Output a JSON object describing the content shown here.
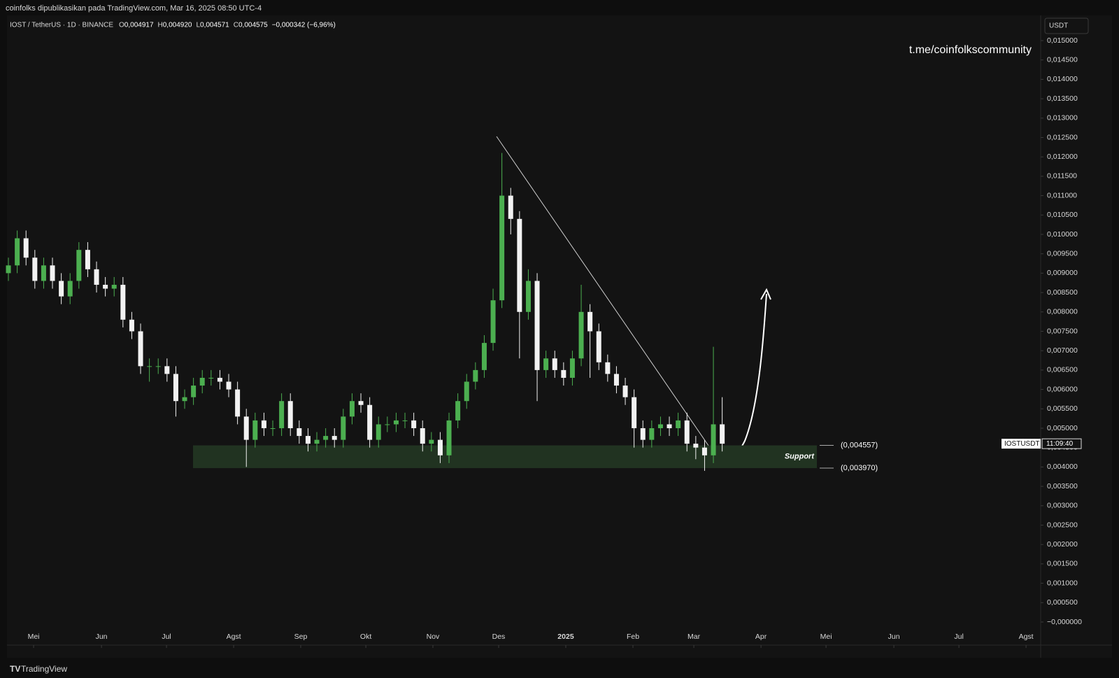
{
  "header": {
    "publisher": "coinfolks dipublikasikan pada TradingView.com, Mar 16, 2025 08:50 UTC-4",
    "symbol": "IOST / TetherUS · 1D · BINANCE",
    "ohlc": [
      {
        "key": "O",
        "value": "0,004917"
      },
      {
        "key": "H",
        "value": "0,004920"
      },
      {
        "key": "L",
        "value": "0,004571"
      },
      {
        "key": "C",
        "value": "0,004575"
      }
    ],
    "change": "−0,000342 (−6,96%)",
    "currency": "USDT",
    "watermark": "t.me/coinfolkscommunity"
  },
  "footer": {
    "brand": "TradingView"
  },
  "price_tag": {
    "symbol": "IOSTUSDT",
    "countdown": "11:09:40"
  },
  "chart_data": {
    "type": "candlestick",
    "up_color": "#4caf50",
    "down_color": "#f2f2f2",
    "grid": false,
    "xlim": [
      -0.16,
      116.9
    ],
    "xticks": [
      {
        "value": 2.86,
        "label": "Mei"
      },
      {
        "value": 10.56,
        "label": "Jun"
      },
      {
        "value": 17.94,
        "label": "Jul"
      },
      {
        "value": 25.56,
        "label": "Agst"
      },
      {
        "value": 33.17,
        "label": "Sep"
      },
      {
        "value": 40.56,
        "label": "Okt"
      },
      {
        "value": 48.17,
        "label": "Nov"
      },
      {
        "value": 55.63,
        "label": "Des"
      },
      {
        "value": 63.25,
        "label": "2025"
      },
      {
        "value": 70.87,
        "label": "Feb"
      },
      {
        "value": 77.78,
        "label": "Mar"
      },
      {
        "value": 85.4,
        "label": "Apr"
      },
      {
        "value": 92.78,
        "label": "Mei"
      },
      {
        "value": 100.48,
        "label": "Jun"
      },
      {
        "value": 107.86,
        "label": "Jul"
      },
      {
        "value": 115.48,
        "label": "Agst"
      }
    ],
    "ylim": [
      -0.00056,
      0.01565
    ],
    "yticks": [
      {
        "value": 0.015,
        "label": "0,015000"
      },
      {
        "value": 0.0145,
        "label": "0,014500"
      },
      {
        "value": 0.014,
        "label": "0,014000"
      },
      {
        "value": 0.0135,
        "label": "0,013500"
      },
      {
        "value": 0.013,
        "label": "0,013000"
      },
      {
        "value": 0.0125,
        "label": "0,012500"
      },
      {
        "value": 0.012,
        "label": "0,012000"
      },
      {
        "value": 0.0115,
        "label": "0,011500"
      },
      {
        "value": 0.011,
        "label": "0,011000"
      },
      {
        "value": 0.0105,
        "label": "0,010500"
      },
      {
        "value": 0.01,
        "label": "0,010000"
      },
      {
        "value": 0.0095,
        "label": "0,009500"
      },
      {
        "value": 0.009,
        "label": "0,009000"
      },
      {
        "value": 0.0085,
        "label": "0,008500"
      },
      {
        "value": 0.008,
        "label": "0,008000"
      },
      {
        "value": 0.0075,
        "label": "0,007500"
      },
      {
        "value": 0.007,
        "label": "0,007000"
      },
      {
        "value": 0.0065,
        "label": "0,006500"
      },
      {
        "value": 0.006,
        "label": "0,006000"
      },
      {
        "value": 0.0055,
        "label": "0,005500"
      },
      {
        "value": 0.005,
        "label": "0,005000"
      },
      {
        "value": 0.0045,
        "label": "0,004500"
      },
      {
        "value": 0.004,
        "label": "0,004000"
      },
      {
        "value": 0.0035,
        "label": "0,003500"
      },
      {
        "value": 0.003,
        "label": "0,003000"
      },
      {
        "value": 0.0025,
        "label": "0,002500"
      },
      {
        "value": 0.002,
        "label": "0,002000"
      },
      {
        "value": 0.0015,
        "label": "0,001500"
      },
      {
        "value": 0.001,
        "label": "0,001000"
      },
      {
        "value": 0.0005,
        "label": "0,000500"
      },
      {
        "value": 0,
        "label": "−0,000000"
      }
    ],
    "open": [
      0.009,
      0.0092,
      0.0099,
      0.0094,
      0.0088,
      0.0092,
      0.0088,
      0.0084,
      0.0088,
      0.0096,
      0.0091,
      0.0087,
      0.0086,
      0.0087,
      0.0078,
      0.0075,
      0.0066,
      0.0066,
      0.0066,
      0.0064,
      0.0057,
      0.0058,
      0.0061,
      0.0063,
      0.0063,
      0.0062,
      0.006,
      0.0053,
      0.0047,
      0.0052,
      0.005,
      0.005,
      0.0057,
      0.005,
      0.0048,
      0.0046,
      0.0047,
      0.0048,
      0.0047,
      0.0053,
      0.0057,
      0.0056,
      0.0047,
      0.0051,
      0.0051,
      0.0052,
      0.0052,
      0.005,
      0.0046,
      0.0047,
      0.0043,
      0.0052,
      0.0057,
      0.0062,
      0.0065,
      0.0072,
      0.0083,
      0.011,
      0.0104,
      0.008,
      0.0088,
      0.0065,
      0.0068,
      0.0065,
      0.0063,
      0.0068,
      0.008,
      0.0075,
      0.0067,
      0.0064,
      0.0061,
      0.0058,
      0.005,
      0.0047,
      0.005,
      0.0051,
      0.005,
      0.0052,
      0.0046,
      0.0045,
      0.0043,
      0.0051
    ],
    "high": [
      0.0094,
      0.0101,
      0.0101,
      0.0096,
      0.0094,
      0.0094,
      0.009,
      0.009,
      0.0098,
      0.0098,
      0.0093,
      0.0089,
      0.0089,
      0.0089,
      0.008,
      0.0077,
      0.0068,
      0.0068,
      0.0068,
      0.0066,
      0.006,
      0.0063,
      0.0065,
      0.0065,
      0.0065,
      0.0064,
      0.0062,
      0.0055,
      0.0054,
      0.0054,
      0.0052,
      0.0059,
      0.0059,
      0.0052,
      0.005,
      0.0049,
      0.005,
      0.005,
      0.0055,
      0.0059,
      0.0059,
      0.0058,
      0.0053,
      0.0053,
      0.0054,
      0.0054,
      0.0054,
      0.0052,
      0.0049,
      0.0049,
      0.0054,
      0.0059,
      0.0064,
      0.0067,
      0.0074,
      0.0086,
      0.0121,
      0.0112,
      0.0106,
      0.0091,
      0.009,
      0.007,
      0.007,
      0.0067,
      0.007,
      0.0087,
      0.0082,
      0.0077,
      0.0069,
      0.0066,
      0.0063,
      0.006,
      0.0052,
      0.0052,
      0.0053,
      0.0053,
      0.0054,
      0.0054,
      0.0048,
      0.0047,
      0.0071,
      0.0058
    ],
    "low": [
      0.0088,
      0.009,
      0.0092,
      0.0086,
      0.0086,
      0.0086,
      0.0082,
      0.0082,
      0.0086,
      0.0089,
      0.0085,
      0.0084,
      0.0084,
      0.0076,
      0.0073,
      0.0064,
      0.0062,
      0.0064,
      0.0062,
      0.0053,
      0.0055,
      0.0056,
      0.0059,
      0.0061,
      0.006,
      0.0058,
      0.0051,
      0.004,
      0.0045,
      0.0048,
      0.0048,
      0.0048,
      0.0048,
      0.0046,
      0.0044,
      0.0044,
      0.0045,
      0.0045,
      0.0045,
      0.0051,
      0.0054,
      0.0045,
      0.0045,
      0.0049,
      0.0049,
      0.005,
      0.0048,
      0.0044,
      0.0044,
      0.0041,
      0.0041,
      0.005,
      0.0055,
      0.006,
      0.0063,
      0.007,
      0.0081,
      0.01,
      0.0068,
      0.0078,
      0.0057,
      0.0063,
      0.0063,
      0.0061,
      0.0061,
      0.0066,
      0.0063,
      0.0065,
      0.0062,
      0.0059,
      0.0056,
      0.0045,
      0.0045,
      0.0045,
      0.0048,
      0.0048,
      0.0048,
      0.0044,
      0.0042,
      0.0039,
      0.0041,
      0.0044
    ],
    "close": [
      0.0092,
      0.0099,
      0.0094,
      0.0088,
      0.0092,
      0.0088,
      0.0084,
      0.0088,
      0.0096,
      0.0091,
      0.0087,
      0.0086,
      0.0087,
      0.0078,
      0.0075,
      0.0066,
      0.0066,
      0.0066,
      0.0064,
      0.0057,
      0.0058,
      0.0061,
      0.0063,
      0.0063,
      0.0062,
      0.006,
      0.0053,
      0.0047,
      0.0052,
      0.005,
      0.005,
      0.0057,
      0.005,
      0.0048,
      0.0046,
      0.0047,
      0.0048,
      0.0047,
      0.0053,
      0.0057,
      0.0056,
      0.0047,
      0.0051,
      0.0051,
      0.0052,
      0.0052,
      0.005,
      0.0046,
      0.0047,
      0.0043,
      0.0052,
      0.0057,
      0.0062,
      0.0065,
      0.0072,
      0.0083,
      0.011,
      0.0104,
      0.008,
      0.0088,
      0.0065,
      0.0068,
      0.0065,
      0.0063,
      0.0068,
      0.008,
      0.0075,
      0.0067,
      0.0064,
      0.0061,
      0.0058,
      0.005,
      0.0047,
      0.005,
      0.0051,
      0.005,
      0.0052,
      0.0046,
      0.0045,
      0.0043,
      0.0051,
      0.0046
    ],
    "support_zone": {
      "label": "Support",
      "color": "#213321",
      "values": [
        0.004557,
        0.00397
      ],
      "value_labels": [
        "(0,004557)",
        "(0,003970)"
      ]
    }
  }
}
